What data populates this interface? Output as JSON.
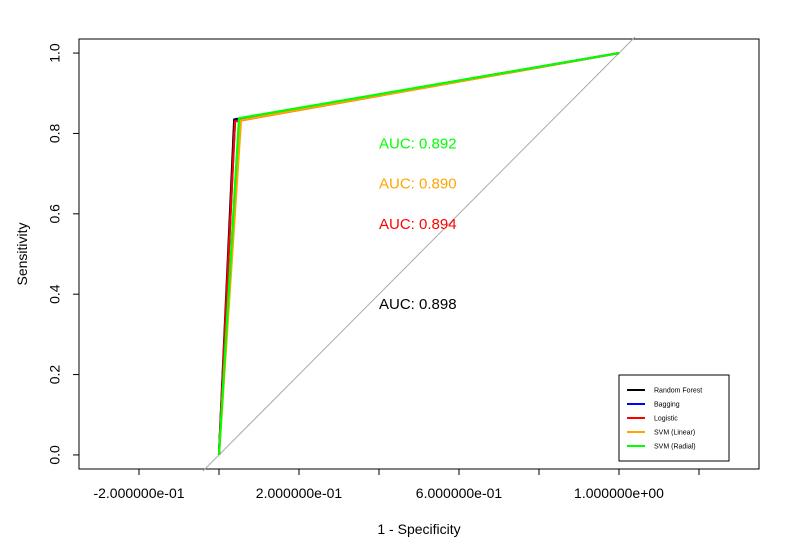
{
  "chart_data": {
    "type": "line",
    "xlabel": "1 - Specificity",
    "ylabel": "Sensitivity",
    "xlim": [
      -0.35,
      1.35
    ],
    "ylim": [
      -0.035,
      1.035
    ],
    "x_ticks": [
      -0.2,
      0.0,
      0.2,
      0.4,
      0.6,
      0.8,
      1.0,
      1.2
    ],
    "x_tick_labels": [
      "-2.000000e-01",
      "",
      "2.000000e-01",
      "",
      "6.000000e-01",
      "",
      "1.000000e+00",
      ""
    ],
    "y_ticks": [
      0.0,
      0.2,
      0.4,
      0.6,
      0.8,
      1.0
    ],
    "y_tick_labels": [
      "0.0",
      "0.2",
      "0.4",
      "0.6",
      "0.8",
      "1.0"
    ],
    "reference_line": {
      "x": [
        -0.04,
        1.04
      ],
      "y": [
        -0.04,
        1.04
      ],
      "color": "#aaaaaa"
    },
    "series": [
      {
        "name": "Random Forest",
        "color": "#000000",
        "x": [
          0.0,
          0.038,
          1.0
        ],
        "y": [
          0.0,
          0.835,
          1.0
        ]
      },
      {
        "name": "Bagging",
        "color": "#0000ff",
        "x": [
          0.0,
          0.04,
          1.0
        ],
        "y": [
          0.0,
          0.832,
          1.0
        ]
      },
      {
        "name": "Logistic",
        "color": "#ff0000",
        "x": [
          0.0,
          0.04,
          1.0
        ],
        "y": [
          0.0,
          0.83,
          1.0
        ]
      },
      {
        "name": "SVM (Linear)",
        "color": "#ffa500",
        "x": [
          0.0,
          0.055,
          1.0
        ],
        "y": [
          0.0,
          0.833,
          1.0
        ]
      },
      {
        "name": "SVM (Radial)",
        "color": "#00ff00",
        "x": [
          0.0,
          0.05,
          1.0
        ],
        "y": [
          0.0,
          0.838,
          1.0
        ]
      }
    ],
    "annotations": [
      {
        "text": "AUC: 0.892",
        "color": "#00ff00",
        "x": 0.5,
        "y": 0.775
      },
      {
        "text": "AUC: 0.890",
        "color": "#ffa500",
        "x": 0.5,
        "y": 0.675
      },
      {
        "text": "AUC: 0.894",
        "color": "#ff0000",
        "x": 0.5,
        "y": 0.575
      },
      {
        "text": "AUC: 0.898",
        "color": "#000000",
        "x": 0.5,
        "y": 0.375
      }
    ],
    "legend": {
      "placement": "bottom-right",
      "entries": [
        "Random Forest",
        "Bagging",
        "Logistic",
        "SVM (Linear)",
        "SVM (Radial)"
      ]
    },
    "grid": false
  }
}
